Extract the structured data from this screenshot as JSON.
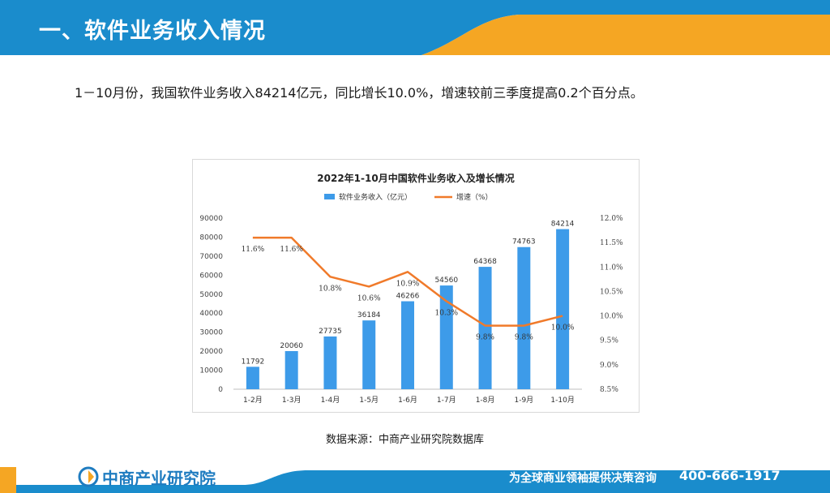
{
  "header": {
    "title": "一、软件业务收入情况"
  },
  "summary": {
    "text": "1－10月份，我国软件业务收入84214亿元，同比增长10.0%，增速较前三季度提高0.2个百分点。"
  },
  "chart_data": {
    "type": "bar+line",
    "title": "2022年1-10月中国软件业务收入及增长情况",
    "categories": [
      "1-2月",
      "1-3月",
      "1-4月",
      "1-5月",
      "1-6月",
      "1-7月",
      "1-8月",
      "1-9月",
      "1-10月"
    ],
    "series": [
      {
        "name": "软件业务收入（亿元）",
        "type": "bar",
        "axis": "left",
        "color": "#3d9be9",
        "values": [
          11792,
          20060,
          27735,
          36184,
          46266,
          54560,
          64368,
          74763,
          84214
        ],
        "labels": [
          "11792",
          "20060",
          "27735",
          "36184",
          "46266",
          "54560",
          "64368",
          "74763",
          "84214"
        ]
      },
      {
        "name": "增速（%）",
        "type": "line",
        "axis": "right",
        "color": "#f07a2a",
        "values": [
          11.6,
          11.6,
          10.8,
          10.6,
          10.9,
          10.3,
          9.8,
          9.8,
          10.0
        ],
        "labels": [
          "11.6%",
          "11.6%",
          "10.8%",
          "10.6%",
          "10.9%",
          "10.3%",
          "9.8%",
          "9.8%",
          "10.0%"
        ]
      }
    ],
    "y_left": {
      "min": 0,
      "max": 90000,
      "ticks": [
        "0",
        "10000",
        "20000",
        "30000",
        "40000",
        "50000",
        "60000",
        "70000",
        "80000",
        "90000"
      ]
    },
    "y_right": {
      "min": 8.5,
      "max": 12.0,
      "ticks": [
        "8.5%",
        "9.0%",
        "9.5%",
        "10.0%",
        "10.5%",
        "11.0%",
        "11.5%",
        "12.0%"
      ]
    },
    "legend": "top-center",
    "grid": false
  },
  "source": {
    "text": "数据来源：中商产业研究院数据库"
  },
  "footer": {
    "logo_text": "中商产业研究院",
    "slogan": "为全球商业领袖提供决策咨询",
    "phone": "400-666-1917"
  },
  "colors": {
    "header_blue": "#1a8ccc",
    "accent_orange": "#f5a623",
    "bar_blue": "#3d9be9",
    "line_orange": "#f07a2a"
  }
}
